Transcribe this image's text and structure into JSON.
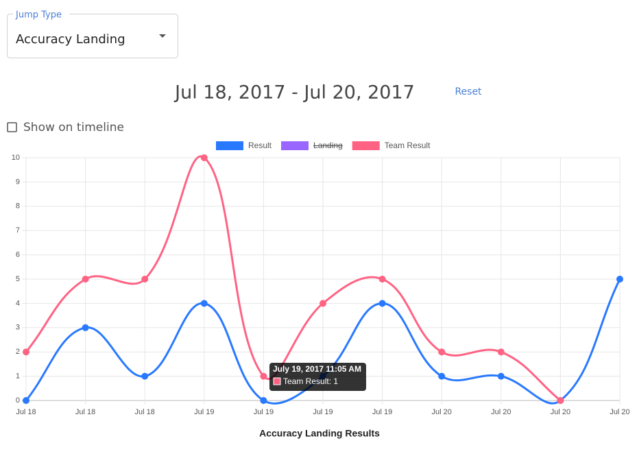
{
  "jump_type": {
    "label": "Jump Type",
    "value": "Accuracy Landing"
  },
  "date_range": "Jul 18, 2017 - Jul 20, 2017",
  "reset": "Reset",
  "timeline_toggle": "Show on timeline",
  "chart_data": {
    "type": "line",
    "x_title": "Accuracy Landing Results",
    "categories": [
      "Jul 18",
      "Jul 18",
      "Jul 18",
      "Jul 19",
      "Jul 19",
      "Jul 19",
      "Jul 19",
      "Jul 20",
      "Jul 20",
      "Jul 20",
      "Jul 20"
    ],
    "series": [
      {
        "name": "Result",
        "color": "#2979ff",
        "values": [
          0,
          3,
          1,
          4,
          0,
          1,
          4,
          1,
          1,
          0,
          5
        ]
      },
      {
        "name": "Landing",
        "color": "#9966ff",
        "hidden": true,
        "values": [
          null,
          null,
          null,
          null,
          null,
          null,
          null,
          null,
          null,
          null,
          null
        ]
      },
      {
        "name": "Team Result",
        "color": "#ff6384",
        "values": [
          2,
          5,
          5,
          10,
          1,
          4,
          5,
          2,
          2,
          0,
          null
        ]
      }
    ],
    "ylim": [
      0,
      10
    ],
    "yticks": [
      0,
      1,
      2,
      3,
      4,
      5,
      6,
      7,
      8,
      9,
      10
    ],
    "grid": true,
    "tooltip": {
      "title": "July 19, 2017 11:05 AM",
      "text": "Team Result: 1",
      "series": 2,
      "index": 4
    }
  }
}
